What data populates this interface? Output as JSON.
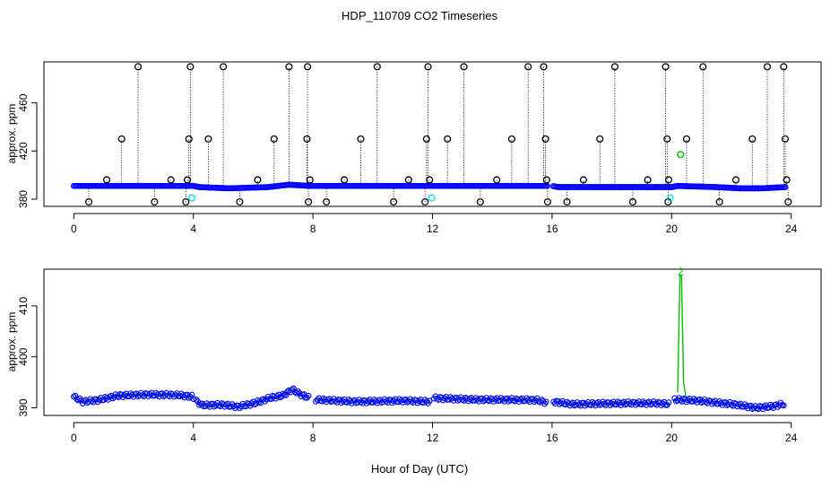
{
  "title": "HDP_110709  CO2 Timeseries",
  "xlabel": "Hour of Day (UTC)",
  "colors": {
    "raw": "#000000",
    "avg": "#0000ff",
    "flag_cyan": "#00e5e5",
    "flag_green": "#00c000",
    "outline": "#00ccaa",
    "bg": "#ffffff"
  },
  "chart_data": [
    {
      "type": "scatter",
      "ylabel": "approx. ppm",
      "xlim": [
        -1,
        25
      ],
      "ylim": [
        374,
        494
      ],
      "x_ticks": [
        0,
        4,
        8,
        12,
        16,
        20,
        24
      ],
      "y_ticks": [
        380,
        420,
        460
      ],
      "series": [
        {
          "role": "raw-spikes",
          "color": "#000000",
          "x": [
            0.5,
            1.1,
            1.6,
            2.15,
            2.7,
            3.25,
            3.75,
            3.8,
            3.85,
            3.9,
            4.5,
            5.0,
            5.55,
            6.15,
            6.7,
            7.2,
            7.8,
            7.82,
            7.85,
            7.9,
            8.45,
            9.05,
            9.6,
            10.15,
            10.7,
            11.2,
            11.75,
            11.8,
            11.85,
            11.9,
            12.5,
            13.05,
            13.6,
            14.15,
            14.65,
            15.2,
            15.72,
            15.78,
            15.82,
            15.85,
            16.5,
            17.05,
            17.6,
            18.1,
            18.7,
            19.2,
            19.8,
            19.85,
            19.88,
            19.9,
            20.5,
            21.05,
            21.6,
            22.15,
            22.7,
            23.2,
            23.75,
            23.8,
            23.85,
            23.9
          ],
          "y": [
            376,
            396,
            430,
            490,
            376,
            396,
            376,
            396,
            430,
            490,
            430,
            490,
            376,
            396,
            430,
            490,
            430,
            490,
            376,
            396,
            376,
            396,
            430,
            490,
            376,
            396,
            376,
            430,
            490,
            396,
            430,
            490,
            376,
            396,
            430,
            490,
            490,
            430,
            396,
            376,
            376,
            396,
            430,
            490,
            376,
            396,
            490,
            430,
            376,
            396,
            430,
            490,
            376,
            396,
            430,
            490,
            490,
            430,
            396,
            376
          ]
        },
        {
          "role": "calibration-flags",
          "color": "#00e5e5",
          "x": [
            3.95,
            11.97,
            19.95
          ],
          "y": [
            381,
            381,
            381
          ]
        },
        {
          "role": "flag-2",
          "color": "#00c000",
          "x": [
            20.3
          ],
          "y": [
            417
          ]
        }
      ],
      "baseline": [
        [
          0,
          391
        ],
        [
          2,
          391
        ],
        [
          4,
          391
        ],
        [
          4.2,
          390
        ],
        [
          5.2,
          389
        ],
        [
          6.5,
          390
        ],
        [
          7.2,
          392
        ],
        [
          7.9,
          391
        ],
        [
          8.1,
          391
        ],
        [
          16,
          391
        ],
        [
          16.2,
          390
        ],
        [
          20,
          390
        ],
        [
          20.2,
          391
        ],
        [
          21.5,
          390
        ],
        [
          22.3,
          389
        ],
        [
          23,
          389
        ],
        [
          23.8,
          390
        ]
      ]
    },
    {
      "type": "line",
      "ylabel": "approx. ppm",
      "xlim": [
        -1,
        25
      ],
      "ylim": [
        388.5,
        417.2
      ],
      "x_ticks": [
        0,
        4,
        8,
        12,
        16,
        20,
        24
      ],
      "y_ticks": [
        390,
        400,
        410
      ],
      "spike_label": "2",
      "spike": {
        "x": [
          20.2,
          20.28,
          20.33,
          20.4,
          20.48
        ],
        "y": [
          393,
          416,
          416,
          395,
          392
        ]
      },
      "anchors": [
        [
          0,
          392.2
        ],
        [
          0.3,
          391.2
        ],
        [
          0.8,
          391.5
        ],
        [
          1.5,
          392.4
        ],
        [
          2.5,
          392.6
        ],
        [
          3.5,
          392.5
        ],
        [
          3.95,
          392.2
        ],
        [
          4.05,
          391.5
        ],
        [
          4.3,
          390.5
        ],
        [
          5.0,
          390.6
        ],
        [
          5.5,
          390.2
        ],
        [
          6.1,
          391.0
        ],
        [
          6.6,
          392.0
        ],
        [
          7.0,
          392.4
        ],
        [
          7.3,
          393.6
        ],
        [
          7.6,
          392.6
        ],
        [
          7.85,
          392.0
        ],
        [
          8.05,
          391.6
        ],
        [
          9.5,
          391.2
        ],
        [
          11.0,
          391.4
        ],
        [
          11.95,
          391.2
        ],
        [
          12.05,
          391.9
        ],
        [
          13.5,
          391.6
        ],
        [
          14.5,
          391.6
        ],
        [
          15.5,
          391.5
        ],
        [
          15.85,
          391.0
        ],
        [
          16.05,
          391.2
        ],
        [
          16.7,
          390.7
        ],
        [
          17.5,
          390.8
        ],
        [
          18.5,
          390.9
        ],
        [
          19.5,
          390.9
        ],
        [
          19.95,
          390.7
        ],
        [
          20.1,
          391.6
        ],
        [
          20.9,
          391.4
        ],
        [
          21.5,
          391.0
        ],
        [
          22.2,
          390.6
        ],
        [
          22.8,
          390.0
        ],
        [
          23.4,
          390.3
        ],
        [
          23.8,
          390.8
        ]
      ]
    }
  ]
}
